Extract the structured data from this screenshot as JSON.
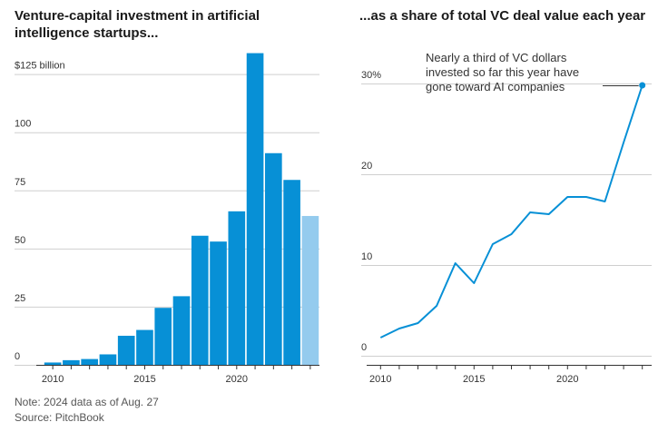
{
  "chart_data": [
    {
      "type": "bar",
      "title": "Venture-capital investment in artificial intelligence startups...",
      "title_lines": [
        "Venture-capital investment in artificial",
        "intelligence startups..."
      ],
      "unit_label": "$125 billion",
      "x": [
        2010,
        2011,
        2012,
        2013,
        2014,
        2015,
        2016,
        2017,
        2018,
        2019,
        2020,
        2021,
        2022,
        2023,
        2024
      ],
      "values": [
        1,
        2,
        2.5,
        4.5,
        12.5,
        15,
        24.5,
        29.5,
        55.5,
        53,
        66,
        134,
        91,
        79.5,
        64
      ],
      "highlight": {
        "x": 2024,
        "meaning": "partial year"
      },
      "ylim": [
        0,
        135
      ],
      "yticks": [
        "$125 billion",
        "100",
        "75",
        "50",
        "25",
        "0"
      ],
      "ytick_values": [
        125,
        100,
        75,
        50,
        25,
        0
      ],
      "xticks": [
        2010,
        2015,
        2020
      ],
      "colors": {
        "bar": "#0790d6",
        "bar_highlight": "#94cbee"
      },
      "grid": true
    },
    {
      "type": "line",
      "title": "...as a share of total VC deal value each year",
      "x": [
        2010,
        2011,
        2012,
        2013,
        2014,
        2015,
        2016,
        2017,
        2018,
        2019,
        2020,
        2021,
        2022,
        2023,
        2024
      ],
      "y": [
        2,
        3,
        3.6,
        5.5,
        10.2,
        8,
        12.3,
        13.4,
        15.8,
        15.6,
        17.5,
        17.5,
        17,
        23.5,
        29.8
      ],
      "ylim": [
        0,
        32
      ],
      "yticks": [
        "30%",
        "20",
        "10",
        "0"
      ],
      "ytick_values": [
        30,
        20,
        10,
        0
      ],
      "xticks": [
        2010,
        2015,
        2020
      ],
      "annotation": {
        "lines": [
          "Nearly a third of VC dollars",
          "invested so far this year have",
          "gone toward AI companies"
        ],
        "x": 2024,
        "y": 29.8
      },
      "colors": {
        "line": "#0790d6"
      },
      "grid": true
    }
  ],
  "notes": {
    "note": "Note: 2024 data as of Aug. 27",
    "source": "Source: PitchBook"
  }
}
